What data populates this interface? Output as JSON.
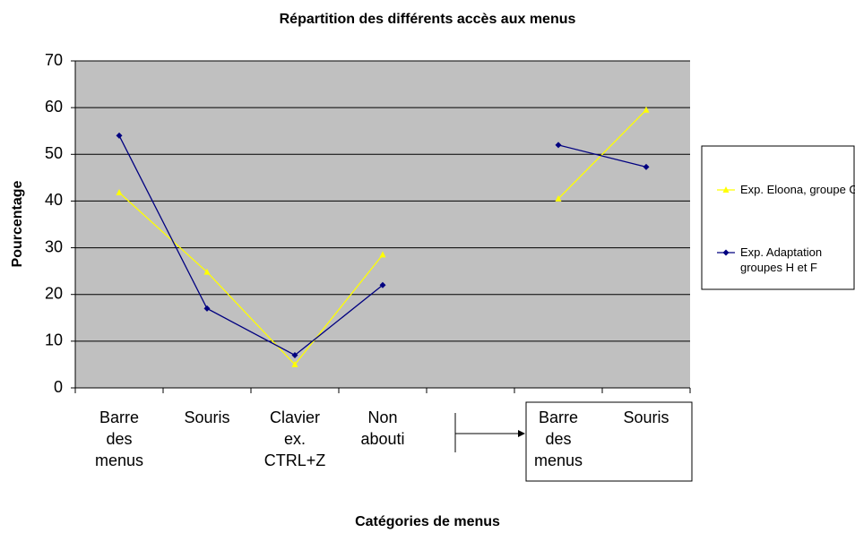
{
  "chart_data": {
    "type": "line",
    "title": "Répartition des différents accès aux menus",
    "xlabel": "Catégories de menus",
    "ylabel": "Pourcentage",
    "categories": [
      "Barre des menus",
      "Souris",
      "Clavier ex. CTRL+Z",
      "Non abouti",
      null,
      "Barre des menus",
      "Souris"
    ],
    "series": [
      {
        "name": "Exp. Eloona, groupe GI",
        "color": "#ffff00",
        "marker": "triangle",
        "values": [
          41.8,
          24.8,
          5,
          28.5,
          null,
          40.5,
          59.5
        ]
      },
      {
        "name": "Exp. Adaptation groupes H et F",
        "color": "#000080",
        "marker": "diamond",
        "values": [
          54,
          17,
          7,
          22,
          null,
          52,
          47.3
        ]
      }
    ],
    "ylim": [
      0,
      70
    ],
    "yticks": [
      0,
      10,
      20,
      30,
      40,
      50,
      60,
      70
    ],
    "grid": true,
    "legend": "right"
  }
}
